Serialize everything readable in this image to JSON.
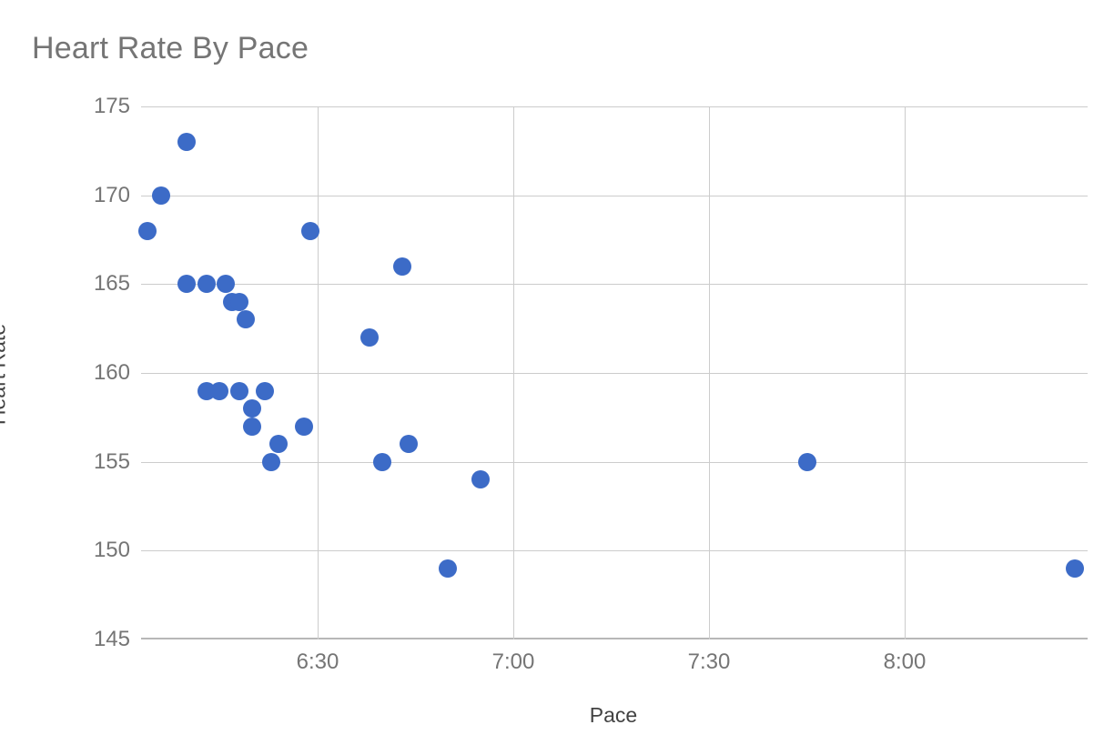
{
  "chart_data": {
    "type": "scatter",
    "title": "Heart Rate By Pace",
    "xlabel": "Pace",
    "ylabel": "Heart Rate",
    "legend": "none",
    "grid": true,
    "x_axis": {
      "tick_labels": [
        "6:30",
        "7:00",
        "7:30",
        "8:00"
      ],
      "tick_seconds": [
        390,
        420,
        450,
        480
      ],
      "domain_seconds": [
        363,
        508
      ]
    },
    "y_axis": {
      "ticks": [
        145,
        150,
        155,
        160,
        165,
        170,
        175
      ],
      "range": [
        145,
        175
      ]
    },
    "points": [
      {
        "pace": "6:04",
        "pace_seconds": 364,
        "heart_rate": 168
      },
      {
        "pace": "6:06",
        "pace_seconds": 366,
        "heart_rate": 170
      },
      {
        "pace": "6:10",
        "pace_seconds": 370,
        "heart_rate": 173
      },
      {
        "pace": "6:10",
        "pace_seconds": 370,
        "heart_rate": 165
      },
      {
        "pace": "6:13",
        "pace_seconds": 373,
        "heart_rate": 165
      },
      {
        "pace": "6:13",
        "pace_seconds": 373,
        "heart_rate": 159
      },
      {
        "pace": "6:15",
        "pace_seconds": 375,
        "heart_rate": 159
      },
      {
        "pace": "6:16",
        "pace_seconds": 376,
        "heart_rate": 165
      },
      {
        "pace": "6:17",
        "pace_seconds": 377,
        "heart_rate": 164
      },
      {
        "pace": "6:18",
        "pace_seconds": 378,
        "heart_rate": 164
      },
      {
        "pace": "6:18",
        "pace_seconds": 378,
        "heart_rate": 159
      },
      {
        "pace": "6:19",
        "pace_seconds": 379,
        "heart_rate": 163
      },
      {
        "pace": "6:20",
        "pace_seconds": 380,
        "heart_rate": 158
      },
      {
        "pace": "6:20",
        "pace_seconds": 380,
        "heart_rate": 157
      },
      {
        "pace": "6:22",
        "pace_seconds": 382,
        "heart_rate": 159
      },
      {
        "pace": "6:23",
        "pace_seconds": 383,
        "heart_rate": 155
      },
      {
        "pace": "6:24",
        "pace_seconds": 384,
        "heart_rate": 156
      },
      {
        "pace": "6:28",
        "pace_seconds": 388,
        "heart_rate": 157
      },
      {
        "pace": "6:29",
        "pace_seconds": 389,
        "heart_rate": 168
      },
      {
        "pace": "6:38",
        "pace_seconds": 398,
        "heart_rate": 162
      },
      {
        "pace": "6:40",
        "pace_seconds": 400,
        "heart_rate": 155
      },
      {
        "pace": "6:43",
        "pace_seconds": 403,
        "heart_rate": 166
      },
      {
        "pace": "6:44",
        "pace_seconds": 404,
        "heart_rate": 156
      },
      {
        "pace": "6:50",
        "pace_seconds": 410,
        "heart_rate": 149
      },
      {
        "pace": "6:55",
        "pace_seconds": 415,
        "heart_rate": 154
      },
      {
        "pace": "7:45",
        "pace_seconds": 465,
        "heart_rate": 155
      },
      {
        "pace": "8:26",
        "pace_seconds": 506,
        "heart_rate": 149
      }
    ],
    "colors": {
      "point": "#3C6BC7",
      "gridline": "#CCCCCC",
      "axis_line": "#B7B7B7",
      "title_text": "#757575",
      "tick_text": "#757575",
      "axis_title_text": "#424242",
      "background": "#FFFFFF"
    }
  }
}
